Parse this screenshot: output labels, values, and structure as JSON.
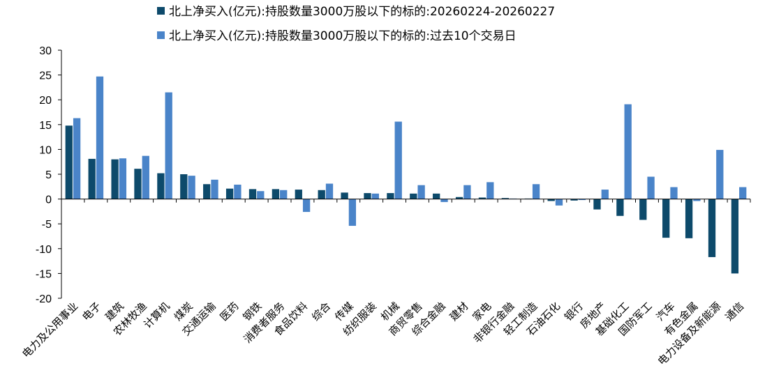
{
  "chart_data": {
    "type": "bar",
    "title": "",
    "xlabel": "",
    "ylabel": "",
    "ylim": [
      -20,
      30
    ],
    "yticks": [
      30,
      25,
      20,
      15,
      10,
      5,
      0,
      -5,
      -10,
      -15,
      -20
    ],
    "grid": false,
    "legend_position": "top",
    "categories": [
      "电力及公用事业",
      "电子",
      "建筑",
      "农林牧渔",
      "计算机",
      "煤炭",
      "交通运输",
      "医药",
      "钢铁",
      "消费者服务",
      "食品饮料",
      "综合",
      "传媒",
      "纺织服装",
      "机械",
      "商贸零售",
      "综合金融",
      "建材",
      "家电",
      "非银行金融",
      "轻工制造",
      "石油石化",
      "银行",
      "房地产",
      "基础化工",
      "国防军工",
      "汽车",
      "有色金属",
      "电力设备及新能源",
      "通信"
    ],
    "series": [
      {
        "name": "北上净买入(亿元):持股数量3000万股以下的标的:20260224-20260227",
        "color": "#0d4a6b",
        "values": [
          14.8,
          8.1,
          8.0,
          6.1,
          5.2,
          5.0,
          3.0,
          2.1,
          2.0,
          2.0,
          1.9,
          1.8,
          1.3,
          1.2,
          1.2,
          1.1,
          1.1,
          0.4,
          0.3,
          0.2,
          0.1,
          -0.4,
          -0.3,
          -2.1,
          -3.4,
          -4.2,
          -7.8,
          -7.9,
          -11.7,
          -15.0
        ]
      },
      {
        "name": "北上净买入(亿元):持股数量3000万股以下的标的:过去10个交易日",
        "color": "#4a84c9",
        "values": [
          16.3,
          24.7,
          8.2,
          8.7,
          21.5,
          4.7,
          3.9,
          2.9,
          1.6,
          1.8,
          -2.6,
          3.1,
          -5.4,
          1.1,
          15.6,
          2.8,
          -0.6,
          2.8,
          3.4,
          0.1,
          3.0,
          -1.3,
          -0.2,
          1.9,
          19.1,
          4.5,
          2.4,
          -0.4,
          9.9,
          2.4
        ]
      }
    ]
  }
}
